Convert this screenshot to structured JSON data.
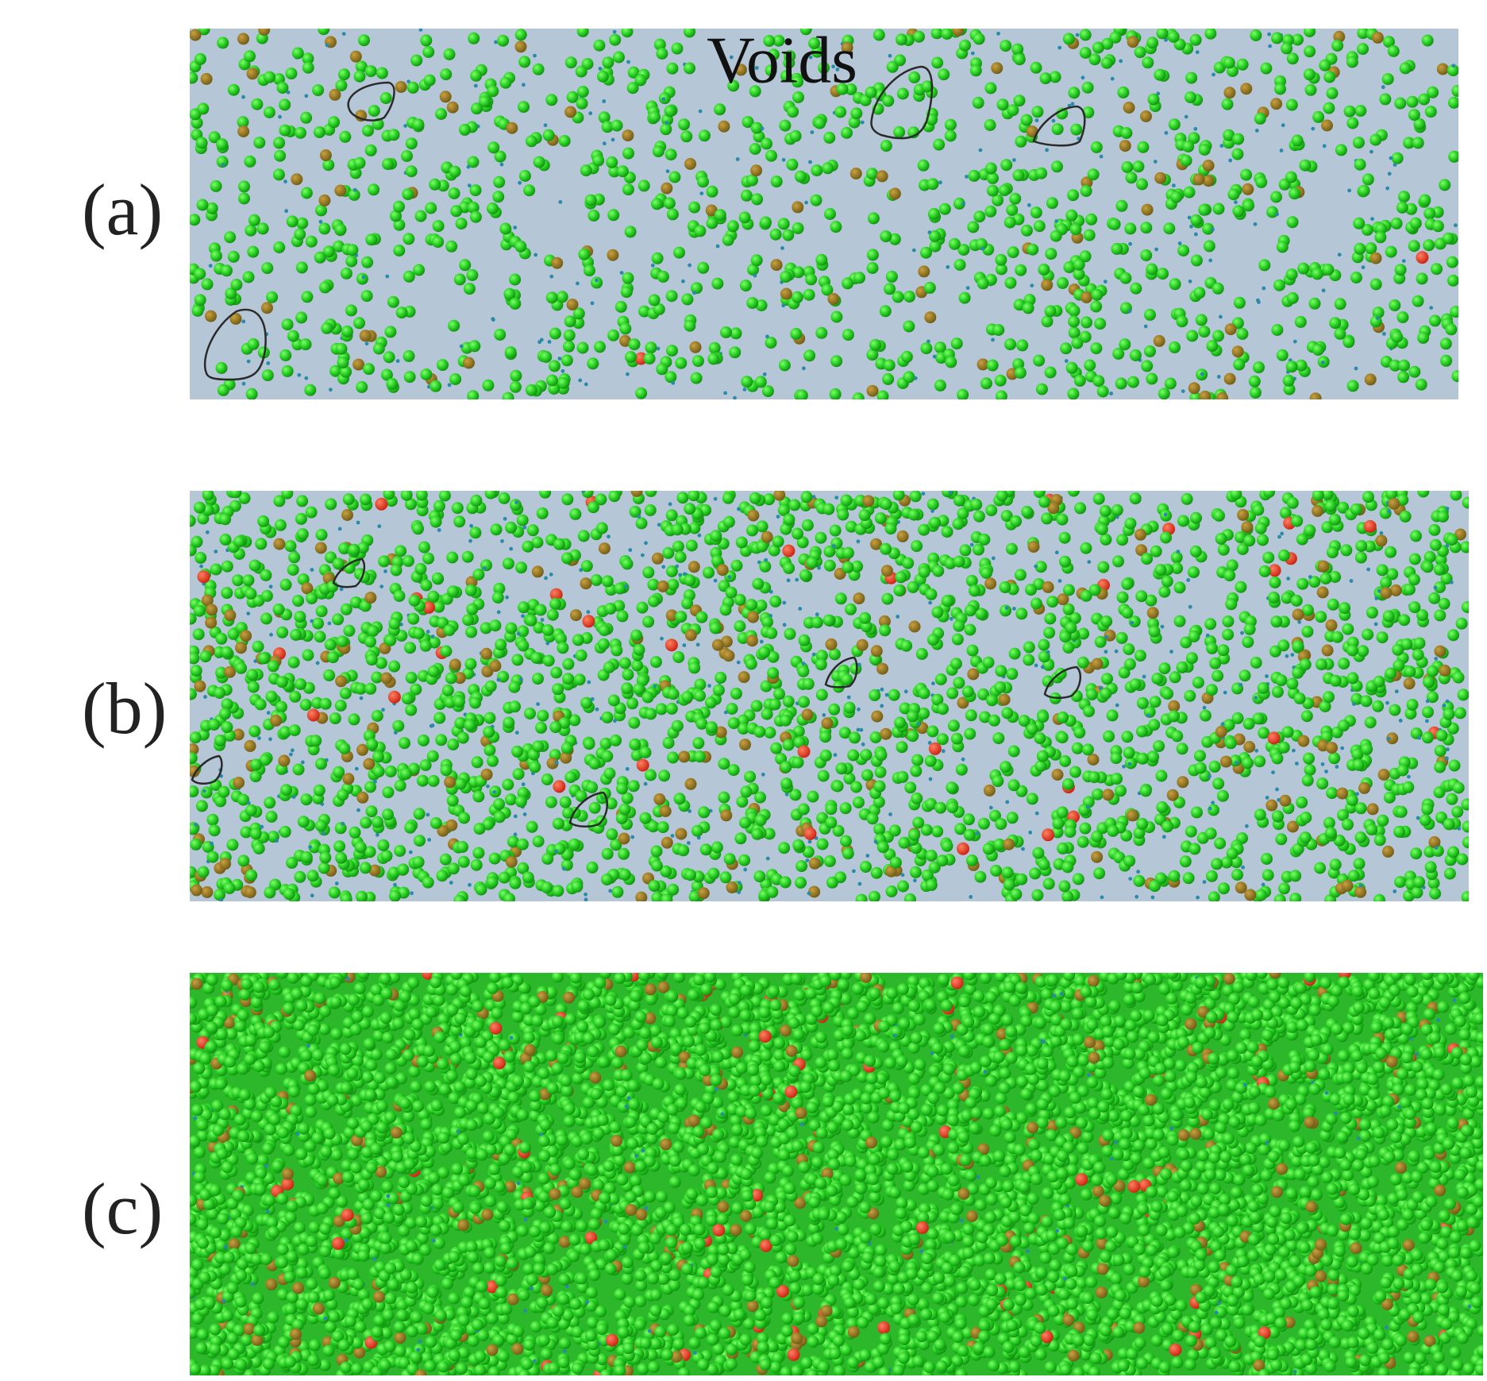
{
  "panels": [
    {
      "label": "(a)",
      "annotation": "Voids"
    },
    {
      "label": "(b)"
    },
    {
      "label": "(c)"
    }
  ]
}
